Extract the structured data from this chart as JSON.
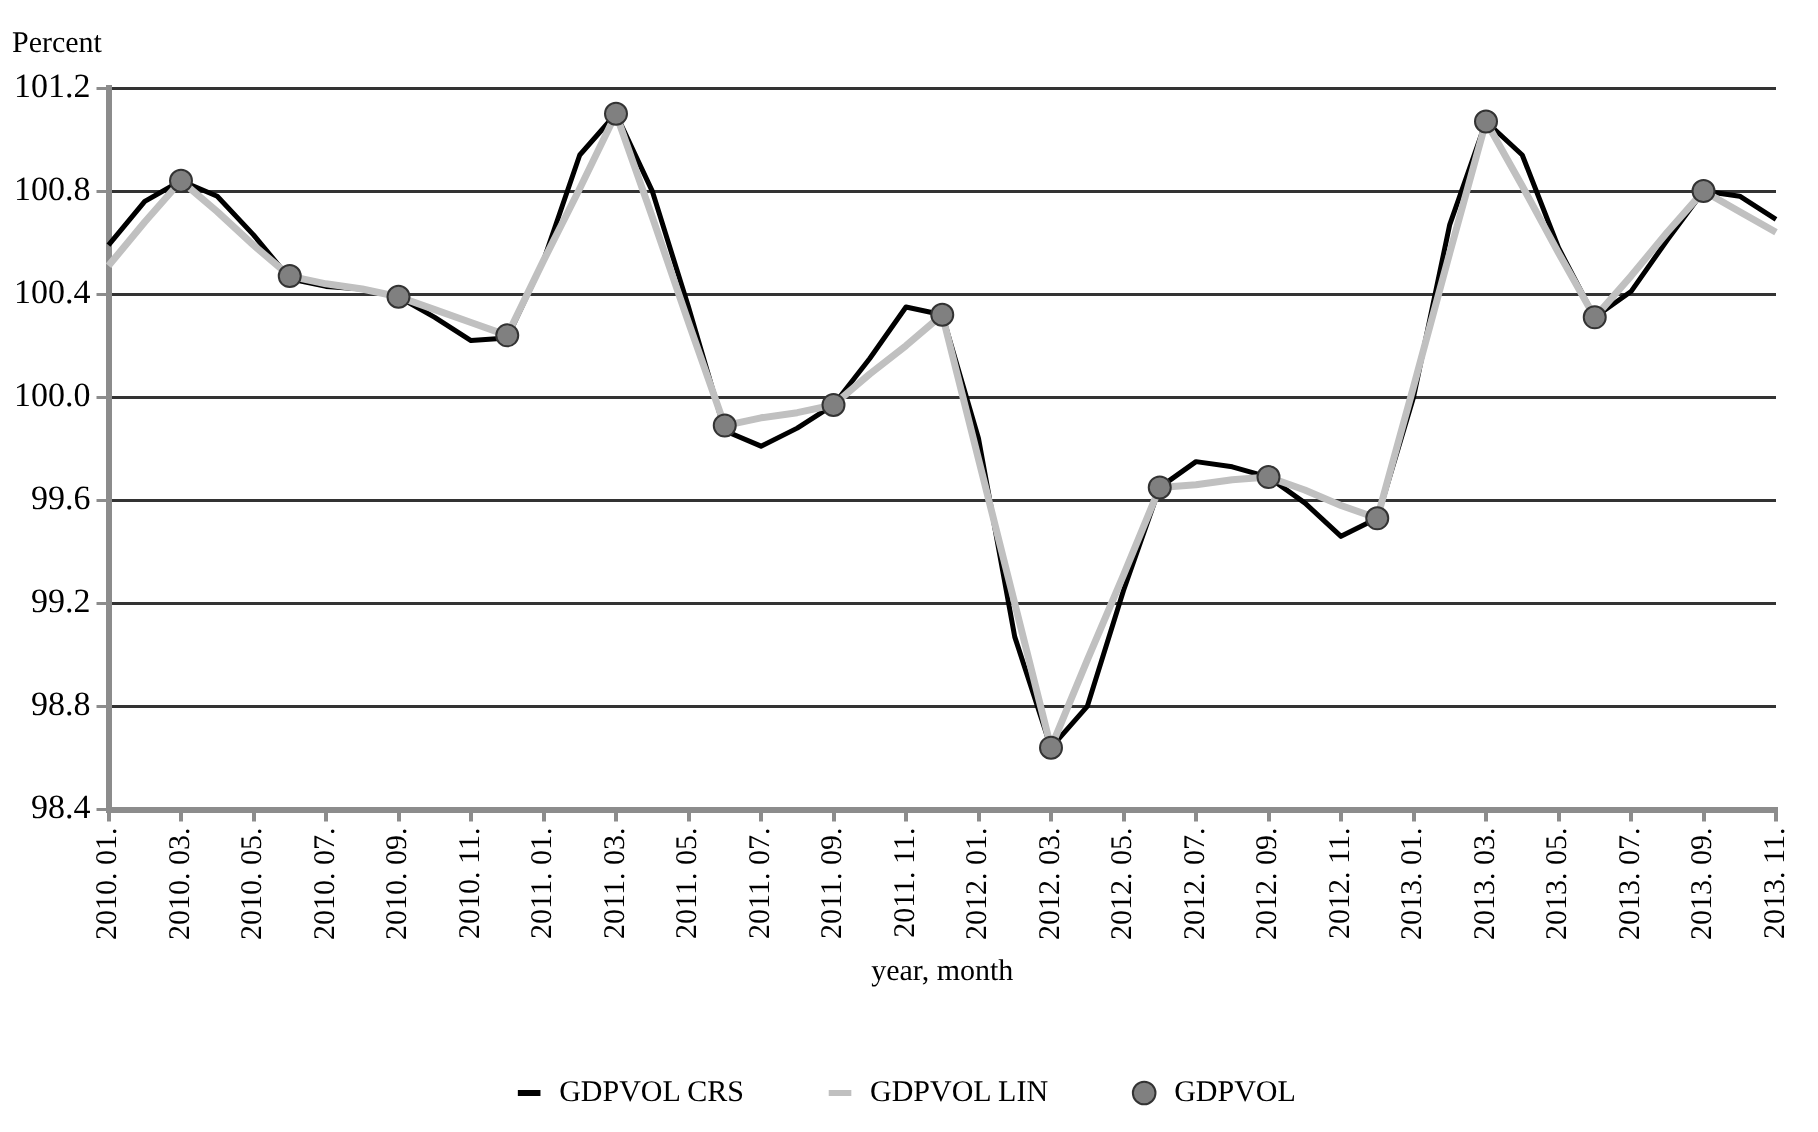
{
  "chart_data": {
    "type": "line",
    "ylabel": "Percent",
    "xlabel": "year, month",
    "categories": [
      "2010. 01.",
      null,
      "2010. 03.",
      null,
      "2010. 05.",
      null,
      "2010. 07.",
      null,
      "2010. 09.",
      null,
      "2010. 11.",
      null,
      "2011. 01.",
      null,
      "2011. 03.",
      null,
      "2011. 05.",
      null,
      "2011. 07.",
      null,
      "2011. 09.",
      null,
      "2011. 11.",
      null,
      "2012. 01.",
      null,
      "2012. 03.",
      null,
      "2012. 05.",
      null,
      "2012. 07.",
      null,
      "2012. 09.",
      null,
      "2012. 11.",
      null,
      "2013. 01.",
      null,
      "2013. 03.",
      null,
      "2013. 05.",
      null,
      "2013. 07.",
      null,
      "2013. 09.",
      null,
      "2013. 11."
    ],
    "series": [
      {
        "name": "GDPVOL CRS",
        "type": "line",
        "color": "#000000",
        "marker": "none",
        "values": [
          100.59,
          100.76,
          100.84,
          100.78,
          100.63,
          100.46,
          100.43,
          100.42,
          100.39,
          100.31,
          100.22,
          100.23,
          100.53,
          100.94,
          101.1,
          100.8,
          100.35,
          99.87,
          99.81,
          99.88,
          99.97,
          100.15,
          100.35,
          100.32,
          99.84,
          99.07,
          98.64,
          98.8,
          99.25,
          99.65,
          99.75,
          99.73,
          99.69,
          99.59,
          99.46,
          99.53,
          100.0,
          100.67,
          101.07,
          100.94,
          100.58,
          100.31,
          100.41,
          100.61,
          100.8,
          100.78,
          100.69
        ]
      },
      {
        "name": "GDPVOL LIN",
        "type": "line",
        "color": "#c0c0c0",
        "marker": "none",
        "values": [
          100.51,
          100.68,
          100.84,
          100.72,
          100.59,
          100.47,
          100.44,
          100.42,
          100.39,
          100.34,
          100.29,
          100.24,
          100.53,
          100.81,
          101.1,
          100.7,
          100.29,
          99.89,
          99.92,
          99.94,
          99.97,
          100.09,
          100.2,
          100.32,
          99.76,
          99.2,
          98.64,
          98.98,
          99.31,
          99.65,
          99.66,
          99.68,
          99.69,
          99.64,
          99.58,
          99.53,
          100.04,
          100.56,
          101.07,
          100.82,
          100.56,
          100.31,
          100.47,
          100.64,
          100.8,
          100.72,
          100.64
        ]
      },
      {
        "name": "GDPVOL",
        "type": "scatter",
        "color": "#808080",
        "marker": "circle",
        "values": [
          null,
          null,
          100.84,
          null,
          null,
          100.47,
          null,
          null,
          100.39,
          null,
          null,
          100.24,
          null,
          null,
          101.1,
          null,
          null,
          99.89,
          null,
          null,
          99.97,
          null,
          null,
          100.32,
          null,
          null,
          98.64,
          null,
          null,
          99.65,
          null,
          null,
          99.69,
          null,
          null,
          99.53,
          null,
          null,
          101.07,
          null,
          null,
          100.31,
          null,
          null,
          100.8,
          null,
          null
        ]
      }
    ],
    "ylim": [
      98.4,
      101.2
    ],
    "yticks": [
      98.4,
      98.8,
      99.2,
      99.6,
      {
        "value": 100,
        "label": "100.0"
      },
      100.4,
      100.8,
      101.2
    ],
    "grid": "y",
    "legend": "bottom"
  }
}
